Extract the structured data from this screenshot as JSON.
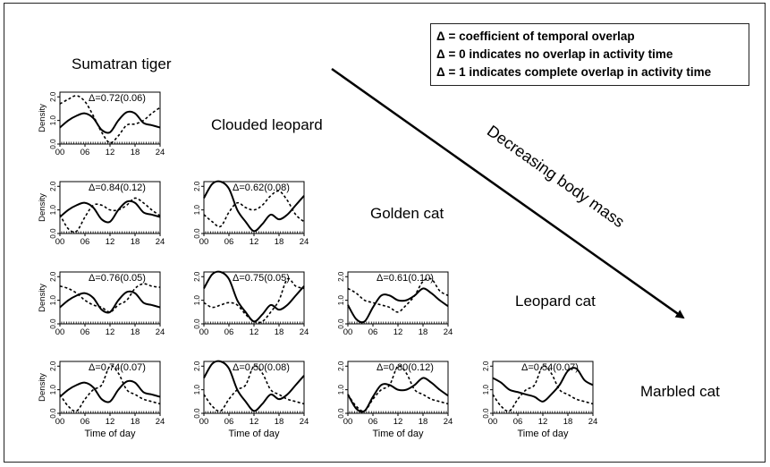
{
  "legend": {
    "line1": "Δ = coefficient of temporal overlap",
    "line2": "Δ = 0 indicates no overlap in activity time",
    "line3": "Δ = 1 indicates complete overlap in activity time"
  },
  "species_labels": {
    "tiger": "Sumatran tiger",
    "clouded": "Clouded leopard",
    "golden": "Golden cat",
    "leopard": "Leopard cat",
    "marbled": "Marbled cat"
  },
  "arrow_label": "Decreasing body mass",
  "colors": {
    "line": "#000000",
    "frame": "#222222",
    "background": "#ffffff"
  },
  "chart_data": {
    "type": "line",
    "xlabel": "Time of day",
    "ylabel": "Density",
    "x_ticks": [
      "00",
      "06",
      "12",
      "18",
      "24"
    ],
    "y_ticks": [
      "0.0",
      "1.0",
      "2.0"
    ],
    "xlim": [
      0,
      24
    ],
    "ylim": [
      0,
      2.2
    ],
    "x": [
      0,
      2,
      4,
      6,
      8,
      10,
      12,
      14,
      16,
      18,
      20,
      22,
      24
    ],
    "panels": [
      {
        "row": 0,
        "col": 0,
        "label": "Δ=0.72(0.06)",
        "solid": [
          0.7,
          1.0,
          1.2,
          1.3,
          1.1,
          0.6,
          0.5,
          1.0,
          1.35,
          1.3,
          0.9,
          0.8,
          0.7
        ],
        "dashed": [
          1.7,
          1.9,
          2.05,
          1.8,
          1.2,
          0.5,
          0.05,
          0.35,
          0.8,
          0.85,
          1.0,
          1.3,
          1.55
        ]
      },
      {
        "row": 1,
        "col": 0,
        "label": "Δ=0.84(0.12)",
        "solid": [
          0.7,
          1.0,
          1.2,
          1.3,
          1.1,
          0.6,
          0.5,
          1.0,
          1.35,
          1.3,
          0.9,
          0.8,
          0.7
        ],
        "dashed": [
          0.8,
          0.2,
          0.1,
          0.7,
          1.2,
          1.2,
          1.0,
          1.0,
          1.2,
          1.5,
          1.3,
          1.0,
          0.75
        ]
      },
      {
        "row": 1,
        "col": 1,
        "label": "Δ=0.62(0.08)",
        "solid": [
          1.5,
          2.1,
          2.2,
          1.9,
          1.0,
          0.5,
          0.1,
          0.4,
          0.8,
          0.6,
          0.8,
          1.2,
          1.6
        ],
        "dashed": [
          0.8,
          0.5,
          0.3,
          0.9,
          1.3,
          1.1,
          1.0,
          1.2,
          1.6,
          1.8,
          1.4,
          0.8,
          0.5
        ]
      },
      {
        "row": 2,
        "col": 0,
        "label": "Δ=0.76(0.05)",
        "solid": [
          0.7,
          1.0,
          1.2,
          1.3,
          1.1,
          0.6,
          0.5,
          1.0,
          1.35,
          1.3,
          0.9,
          0.8,
          0.7
        ],
        "dashed": [
          1.6,
          1.5,
          1.3,
          1.0,
          0.8,
          0.7,
          0.5,
          0.8,
          1.0,
          1.5,
          1.7,
          1.6,
          1.55
        ]
      },
      {
        "row": 2,
        "col": 1,
        "label": "Δ=0.75(0.05)",
        "solid": [
          1.5,
          2.1,
          2.2,
          1.9,
          1.0,
          0.5,
          0.1,
          0.4,
          0.8,
          0.6,
          0.8,
          1.2,
          1.6
        ],
        "dashed": [
          0.9,
          0.7,
          0.8,
          0.9,
          0.8,
          0.4,
          0.1,
          0.1,
          0.5,
          1.0,
          1.9,
          1.6,
          1.5
        ]
      },
      {
        "row": 2,
        "col": 2,
        "label": "Δ=0.61(0.10)",
        "solid": [
          0.8,
          0.2,
          0.1,
          0.7,
          1.2,
          1.2,
          1.0,
          1.0,
          1.2,
          1.5,
          1.3,
          1.0,
          0.75
        ],
        "dashed": [
          1.5,
          1.3,
          1.0,
          0.9,
          0.8,
          0.7,
          0.5,
          0.8,
          1.2,
          1.8,
          1.9,
          1.4,
          1.2
        ]
      },
      {
        "row": 3,
        "col": 0,
        "label": "Δ=0.74(0.07)",
        "solid": [
          0.7,
          1.0,
          1.2,
          1.3,
          1.1,
          0.6,
          0.5,
          1.0,
          1.35,
          1.3,
          0.9,
          0.8,
          0.7
        ],
        "dashed": [
          0.8,
          0.3,
          0.1,
          0.6,
          1.0,
          1.2,
          2.0,
          1.7,
          1.0,
          0.8,
          0.6,
          0.5,
          0.4
        ]
      },
      {
        "row": 3,
        "col": 1,
        "label": "Δ=0.50(0.08)",
        "solid": [
          1.5,
          2.1,
          2.2,
          1.9,
          1.0,
          0.5,
          0.1,
          0.4,
          0.8,
          0.6,
          0.8,
          1.2,
          1.6
        ],
        "dashed": [
          0.8,
          0.3,
          0.1,
          0.6,
          1.0,
          1.2,
          2.0,
          1.7,
          1.0,
          0.8,
          0.6,
          0.5,
          0.4
        ]
      },
      {
        "row": 3,
        "col": 2,
        "label": "Δ=0.80(0.12)",
        "solid": [
          0.8,
          0.2,
          0.1,
          0.7,
          1.2,
          1.2,
          1.0,
          1.0,
          1.2,
          1.5,
          1.3,
          1.0,
          0.75
        ],
        "dashed": [
          0.8,
          0.3,
          0.1,
          0.6,
          1.0,
          1.2,
          2.0,
          1.7,
          1.0,
          0.8,
          0.6,
          0.5,
          0.4
        ]
      },
      {
        "row": 3,
        "col": 3,
        "label": "Δ=0.54(0.07)",
        "solid": [
          1.5,
          1.3,
          1.0,
          0.9,
          0.8,
          0.7,
          0.5,
          0.8,
          1.2,
          1.8,
          1.9,
          1.4,
          1.2
        ],
        "dashed": [
          0.8,
          0.3,
          0.1,
          0.6,
          1.0,
          1.2,
          2.0,
          1.7,
          1.0,
          0.8,
          0.6,
          0.5,
          0.4
        ]
      }
    ]
  }
}
